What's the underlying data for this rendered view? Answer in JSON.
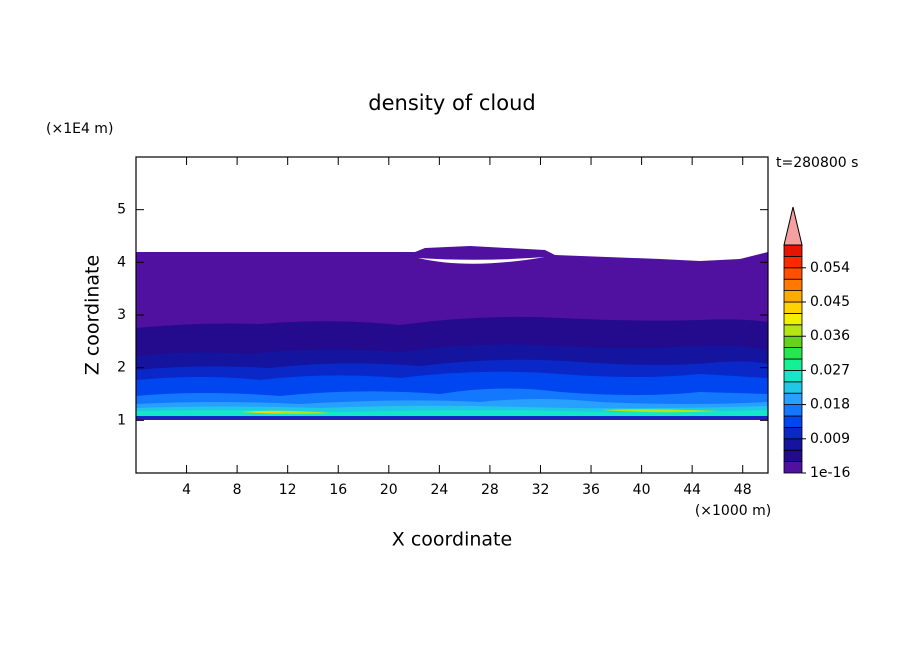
{
  "chart_data": {
    "type": "contour",
    "title": "density of cloud",
    "y_unit": "(×1E4 m)",
    "x_unit": "(×1000 m)",
    "time_label": "t=280800 s",
    "xlabel": "X coordinate",
    "ylabel": "Z coordinate",
    "xlim": [
      0,
      50
    ],
    "ylim": [
      0,
      6
    ],
    "xticks": [
      4,
      8,
      12,
      16,
      20,
      24,
      28,
      32,
      36,
      40,
      44,
      48
    ],
    "yticks": [
      1,
      2,
      3,
      4,
      5
    ],
    "colorbar": {
      "lim": [
        0,
        0.06
      ],
      "ticks": [
        {
          "value": 1e-16,
          "label": "1e-16"
        },
        0.009,
        0.018,
        0.027,
        0.036,
        0.045,
        0.054
      ],
      "colors": [
        "#5010a0",
        "#240a8c",
        "#14149e",
        "#0a28c8",
        "#0046f0",
        "#1478ff",
        "#28a0ff",
        "#1ec8e6",
        "#14e6c8",
        "#14f096",
        "#28e650",
        "#64d21e",
        "#b4e614",
        "#f0f000",
        "#ffd200",
        "#ffaa00",
        "#ff7800",
        "#ff5000",
        "#ff2800",
        "#e61400"
      ],
      "extend_color": "#f4a0a0"
    }
  }
}
